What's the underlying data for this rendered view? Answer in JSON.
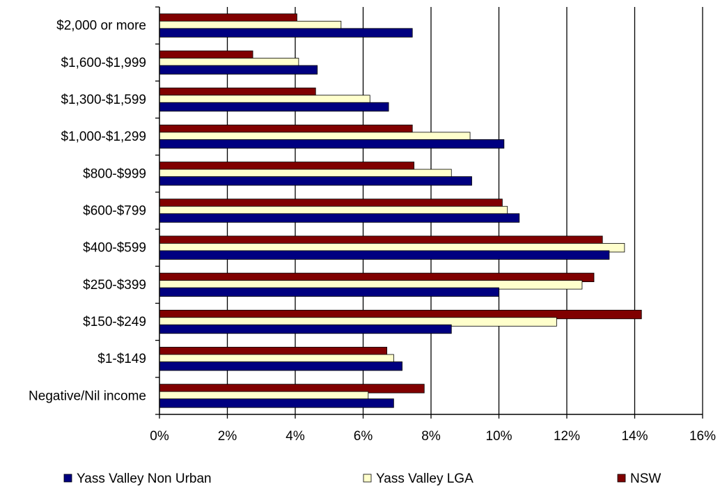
{
  "chart_data": {
    "type": "bar",
    "orientation": "horizontal",
    "categories": [
      "$2,000 or more",
      "$1,600-$1,999",
      "$1,300-$1,599",
      "$1,000-$1,299",
      "$800-$999",
      "$600-$799",
      "$400-$599",
      "$250-$399",
      "$150-$249",
      "$1-$149",
      "Negative/Nil income"
    ],
    "series": [
      {
        "name": "NSW",
        "color": "#800000",
        "values": [
          4.05,
          2.75,
          4.6,
          7.45,
          7.5,
          10.1,
          13.05,
          12.8,
          14.2,
          6.7,
          7.8
        ]
      },
      {
        "name": "Yass Valley LGA",
        "color": "#ffffcc",
        "values": [
          5.35,
          4.1,
          6.2,
          9.15,
          8.6,
          10.25,
          13.7,
          12.45,
          11.7,
          6.9,
          6.15
        ]
      },
      {
        "name": "Yass Valley Non Urban",
        "color": "#000080",
        "values": [
          7.45,
          4.65,
          6.75,
          10.15,
          9.2,
          10.6,
          13.25,
          10.0,
          8.6,
          7.15,
          6.9
        ]
      }
    ],
    "xlim": [
      0,
      16
    ],
    "xticks": [
      "0%",
      "2%",
      "4%",
      "6%",
      "8%",
      "10%",
      "12%",
      "14%",
      "16%"
    ],
    "grid": "vertical",
    "legend": {
      "placement": "bottom",
      "order": [
        "Yass Valley Non Urban",
        "Yass Valley LGA",
        "NSW"
      ]
    }
  }
}
